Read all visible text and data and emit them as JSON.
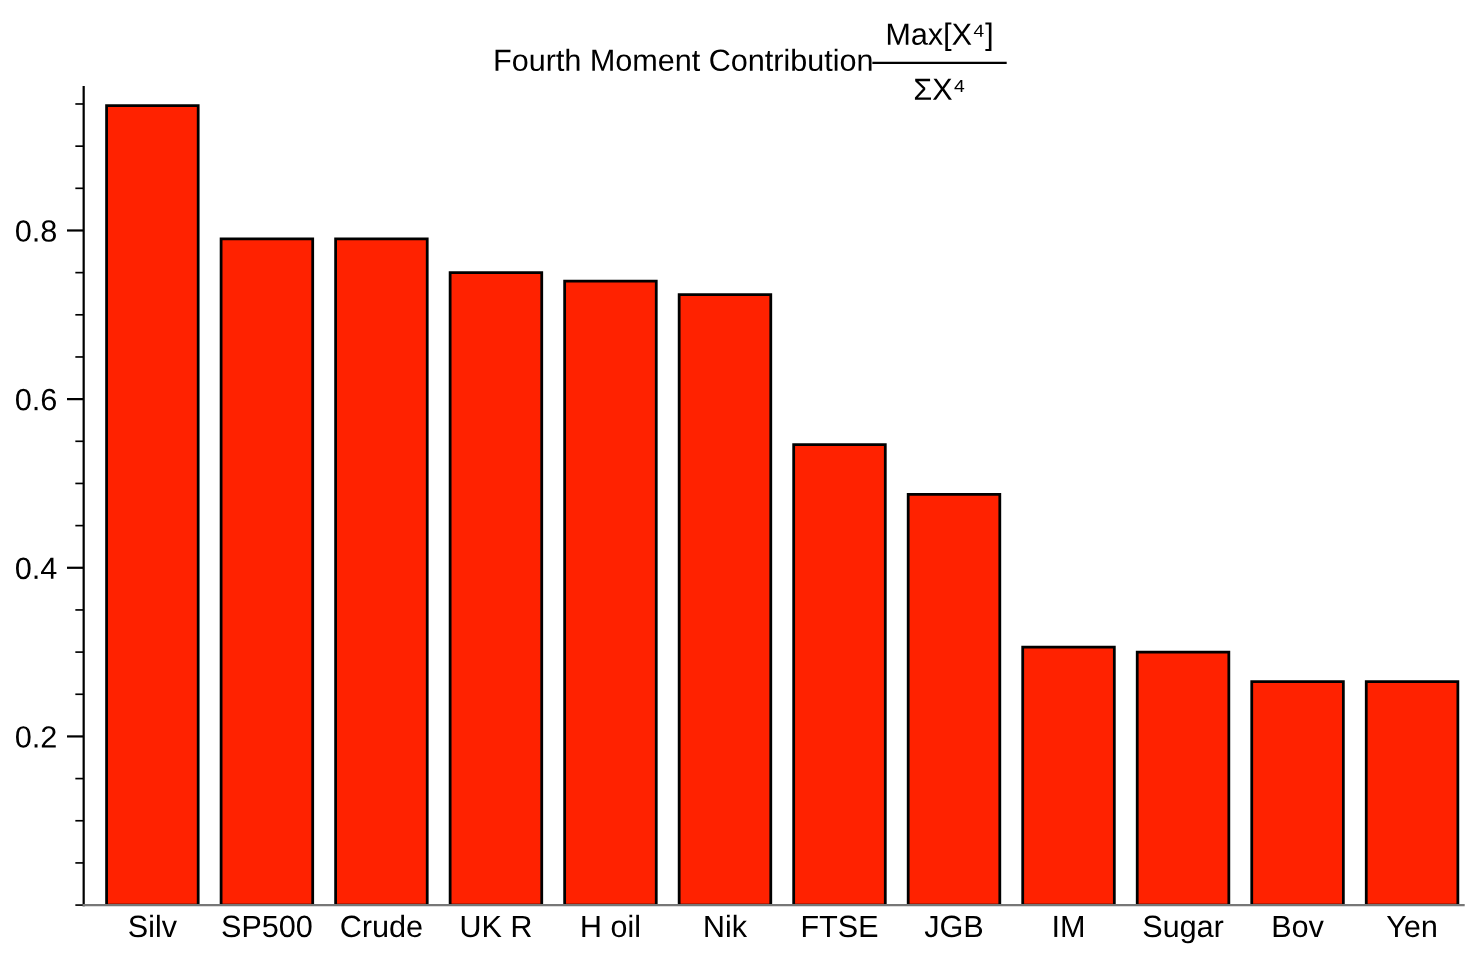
{
  "chart_data": {
    "type": "bar",
    "title": "Fourth Moment Contribution",
    "annotations": [
      "Max[X⁴]",
      "ΣX⁴"
    ],
    "categories": [
      "Silv",
      "SP500",
      "Crude",
      "UK R",
      "H oil",
      "Nik",
      "FTSE",
      "JGB",
      "IM",
      "Sugar",
      "Bov",
      "Yen"
    ],
    "values": [
      0.948,
      0.79,
      0.79,
      0.75,
      0.74,
      0.724,
      0.546,
      0.487,
      0.306,
      0.3,
      0.265,
      0.265
    ],
    "color": "#ff2200",
    "ylim": [
      0,
      0.97
    ],
    "yticks": [
      0.2,
      0.4,
      0.6,
      0.8
    ],
    "grid": false
  }
}
